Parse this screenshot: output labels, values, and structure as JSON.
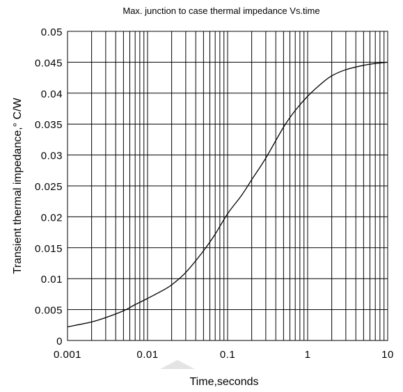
{
  "chart_data": {
    "type": "line",
    "title": "Max. junction to case thermal impedance Vs.time",
    "xlabel": "Time,seconds",
    "ylabel": "Transient thermal impedance,° C/W",
    "x_scale": "log",
    "xlim": [
      0.001,
      10
    ],
    "ylim": [
      0,
      0.05
    ],
    "x_ticks": [
      "0.001",
      "0.01",
      "0.1",
      "1",
      "10"
    ],
    "y_ticks": [
      "0",
      "0.005",
      "0.01",
      "0.015",
      "0.02",
      "0.025",
      "0.03",
      "0.035",
      "0.04",
      "0.045",
      "0.05"
    ],
    "grid": true,
    "series": [
      {
        "x": [
          0.001,
          0.002,
          0.003,
          0.005,
          0.007,
          0.01,
          0.015,
          0.02,
          0.03,
          0.05,
          0.07,
          0.1,
          0.15,
          0.2,
          0.3,
          0.5,
          0.7,
          1,
          1.5,
          2,
          3,
          5,
          7,
          10
        ],
        "y": [
          0.0022,
          0.003,
          0.0037,
          0.0048,
          0.0058,
          0.0068,
          0.008,
          0.009,
          0.011,
          0.0145,
          0.0172,
          0.0205,
          0.0235,
          0.026,
          0.0295,
          0.0345,
          0.0372,
          0.0395,
          0.0416,
          0.0428,
          0.0438,
          0.0445,
          0.0448,
          0.045
        ]
      }
    ]
  }
}
